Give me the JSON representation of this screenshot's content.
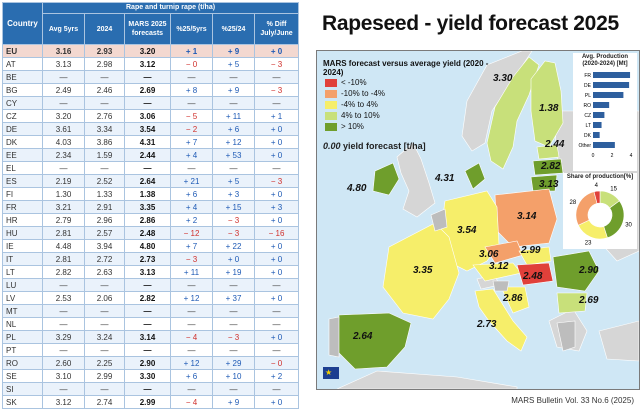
{
  "table": {
    "header_group": "Rape and turnip rape (t/ha)",
    "columns": [
      "Country",
      "Avg 5yrs",
      "2024",
      "MARS 2025 forecasts",
      "%25/5yrs",
      "%25/24",
      "% Diff July/June"
    ],
    "rows": [
      [
        "EU",
        "3.16",
        "2.93",
        "3.20",
        "+ 1",
        "+ 9",
        "+ 0"
      ],
      [
        "AT",
        "3.13",
        "2.98",
        "3.12",
        "− 0",
        "+ 5",
        "− 3"
      ],
      [
        "BE",
        "—",
        "—",
        "—",
        "—",
        "—",
        "—"
      ],
      [
        "BG",
        "2.49",
        "2.46",
        "2.69",
        "+ 8",
        "+ 9",
        "− 3"
      ],
      [
        "CY",
        "—",
        "—",
        "—",
        "—",
        "—",
        "—"
      ],
      [
        "CZ",
        "3.20",
        "2.76",
        "3.06",
        "− 5",
        "+ 11",
        "+ 1"
      ],
      [
        "DE",
        "3.61",
        "3.34",
        "3.54",
        "− 2",
        "+ 6",
        "+ 0"
      ],
      [
        "DK",
        "4.03",
        "3.86",
        "4.31",
        "+ 7",
        "+ 12",
        "+ 0"
      ],
      [
        "EE",
        "2.34",
        "1.59",
        "2.44",
        "+ 4",
        "+ 53",
        "+ 0"
      ],
      [
        "EL",
        "—",
        "—",
        "—",
        "—",
        "—",
        "—"
      ],
      [
        "ES",
        "2.19",
        "2.52",
        "2.64",
        "+ 21",
        "+ 5",
        "− 3"
      ],
      [
        "FI",
        "1.30",
        "1.33",
        "1.38",
        "+ 6",
        "+ 3",
        "+ 0"
      ],
      [
        "FR",
        "3.21",
        "2.91",
        "3.35",
        "+ 4",
        "+ 15",
        "+ 3"
      ],
      [
        "HR",
        "2.79",
        "2.96",
        "2.86",
        "+ 2",
        "− 3",
        "+ 0"
      ],
      [
        "HU",
        "2.81",
        "2.57",
        "2.48",
        "− 12",
        "− 3",
        "− 16"
      ],
      [
        "IE",
        "4.48",
        "3.94",
        "4.80",
        "+ 7",
        "+ 22",
        "+ 0"
      ],
      [
        "IT",
        "2.81",
        "2.72",
        "2.73",
        "− 3",
        "+ 0",
        "+ 0"
      ],
      [
        "LT",
        "2.82",
        "2.63",
        "3.13",
        "+ 11",
        "+ 19",
        "+ 0"
      ],
      [
        "LU",
        "—",
        "—",
        "—",
        "—",
        "—",
        "—"
      ],
      [
        "LV",
        "2.53",
        "2.06",
        "2.82",
        "+ 12",
        "+ 37",
        "+ 0"
      ],
      [
        "MT",
        "—",
        "—",
        "—",
        "—",
        "—",
        "—"
      ],
      [
        "NL",
        "—",
        "—",
        "—",
        "—",
        "—",
        "—"
      ],
      [
        "PL",
        "3.29",
        "3.24",
        "3.14",
        "− 4",
        "− 3",
        "+ 0"
      ],
      [
        "PT",
        "—",
        "—",
        "—",
        "—",
        "—",
        "—"
      ],
      [
        "RO",
        "2.60",
        "2.25",
        "2.90",
        "+ 12",
        "+ 29",
        "− 0"
      ],
      [
        "SE",
        "3.10",
        "2.99",
        "3.30",
        "+ 6",
        "+ 10",
        "+ 2"
      ],
      [
        "SI",
        "—",
        "—",
        "—",
        "—",
        "—",
        "—"
      ],
      [
        "SK",
        "3.12",
        "2.74",
        "2.99",
        "− 4",
        "+ 9",
        "+ 0"
      ]
    ]
  },
  "map": {
    "title": "Rapeseed - yield forecast 2025",
    "legend_title": "MARS forecast versus average yield (2020 - 2024)",
    "legend": [
      {
        "label": "< -10%",
        "color": "#e0403a"
      },
      {
        "label": "-10% to -4%",
        "color": "#f4a06a"
      },
      {
        "label": "-4% to 4%",
        "color": "#f6ee6a"
      },
      {
        "label": "4% to 10%",
        "color": "#c8e07a"
      },
      {
        "label": "> 10%",
        "color": "#6f9e2c"
      }
    ],
    "yield_note_value": "0.00",
    "yield_note_text": "yield forecast [t/ha]",
    "labels": [
      {
        "country": "SE",
        "value": "3.30"
      },
      {
        "country": "FI",
        "value": "1.38"
      },
      {
        "country": "EE",
        "value": "2.44"
      },
      {
        "country": "LV",
        "value": "2.82"
      },
      {
        "country": "LT",
        "value": "3.13"
      },
      {
        "country": "IE",
        "value": "4.80"
      },
      {
        "country": "DK",
        "value": "4.31"
      },
      {
        "country": "PL",
        "value": "3.14"
      },
      {
        "country": "DE",
        "value": "3.54"
      },
      {
        "country": "CZ",
        "value": "3.06"
      },
      {
        "country": "SK",
        "value": "2.99"
      },
      {
        "country": "FR",
        "value": "3.35"
      },
      {
        "country": "AT",
        "value": "3.12"
      },
      {
        "country": "HU",
        "value": "2.48"
      },
      {
        "country": "RO",
        "value": "2.90"
      },
      {
        "country": "HR",
        "value": "2.86"
      },
      {
        "country": "IT",
        "value": "2.73"
      },
      {
        "country": "BG",
        "value": "2.69"
      },
      {
        "country": "ES",
        "value": "2.64"
      }
    ],
    "footnote": "MARS Bulletin Vol. 33 No.6 (2025)"
  },
  "chart_data": [
    {
      "type": "bar",
      "title": "Avg. Production (2020-2024) [Mt]",
      "categories": [
        "FR",
        "DE",
        "PL",
        "RO",
        "CZ",
        "LT",
        "DK",
        "Other"
      ],
      "values": [
        3.9,
        3.8,
        3.2,
        1.7,
        1.2,
        0.9,
        0.7,
        2.3
      ],
      "xlim": [
        0,
        4
      ],
      "ticks": [
        "0",
        "2",
        "4"
      ],
      "color": "#2e5f9e"
    },
    {
      "type": "pie",
      "title": "Share of production[%]",
      "values": [
        15,
        30,
        23,
        28,
        4
      ],
      "colors": [
        "#c8e07a",
        "#6f9e2c",
        "#f6ee6a",
        "#f4a06a",
        "#e0403a"
      ]
    }
  ]
}
